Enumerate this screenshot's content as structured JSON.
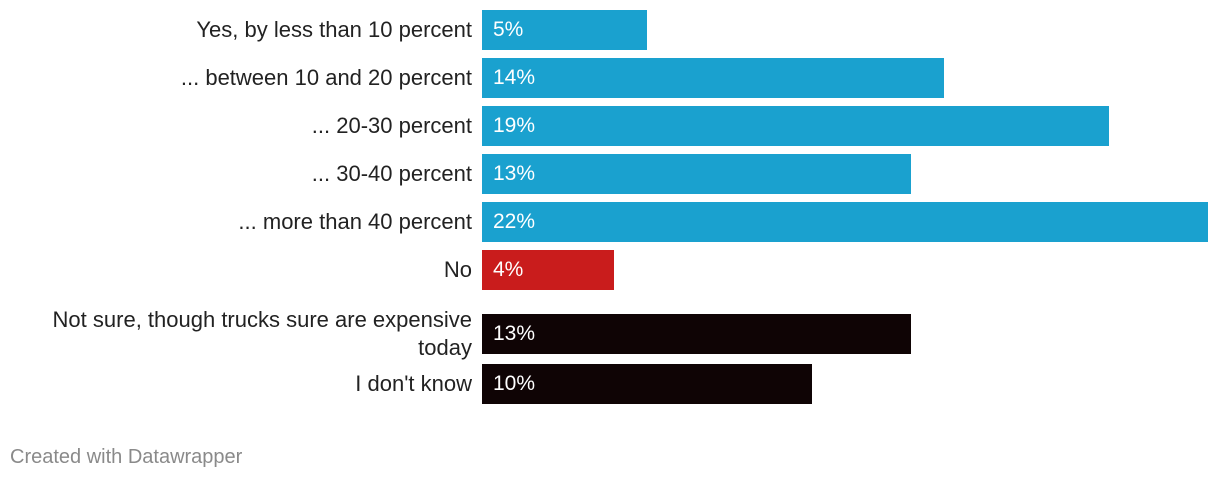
{
  "chart_data": {
    "type": "bar",
    "orientation": "horizontal",
    "categories": [
      "Yes, by less than 10 percent",
      "... between 10 and 20 percent",
      "... 20-30 percent",
      "... 30-40 percent",
      "... more than 40 percent",
      "No",
      "Not sure, though trucks sure are expensive today",
      "I don't know"
    ],
    "values": [
      5,
      14,
      19,
      13,
      22,
      4,
      13,
      10
    ],
    "value_labels": [
      "5%",
      "14%",
      "19%",
      "13%",
      "22%",
      "4%",
      "13%",
      "10%"
    ],
    "bar_colors": [
      "#1aa1cf",
      "#1aa1cf",
      "#1aa1cf",
      "#1aa1cf",
      "#1aa1cf",
      "#c91c1c",
      "#0f0405",
      "#0f0405"
    ],
    "xlim": [
      0,
      22
    ],
    "title": "",
    "xlabel": "",
    "ylabel": ""
  },
  "footer": {
    "credit": "Created with Datawrapper"
  }
}
